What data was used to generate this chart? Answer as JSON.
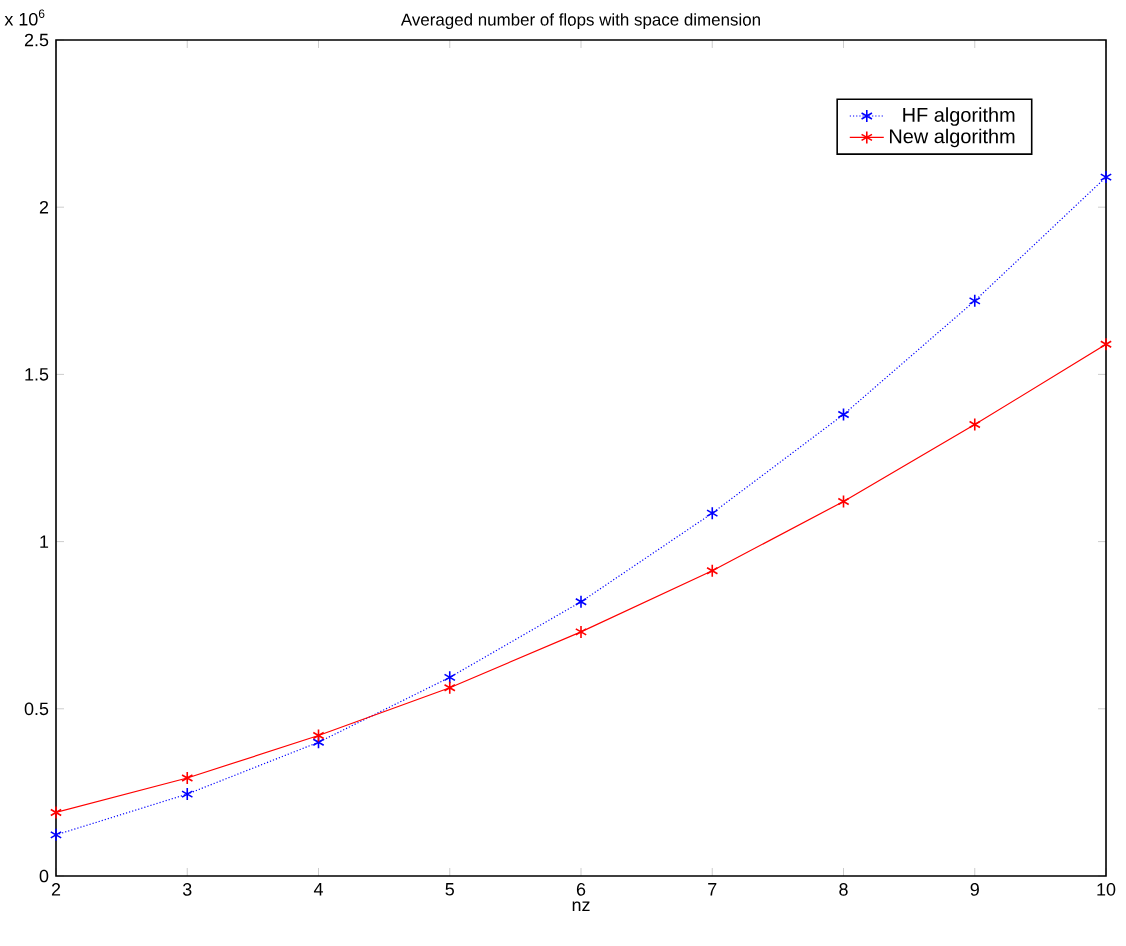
{
  "chart_data": {
    "type": "line",
    "title": "Averaged number of flops with space dimension",
    "xlabel": "nz",
    "annotations": [
      "x 10$^{6}$"
    ],
    "x": [
      2,
      3,
      4,
      5,
      6,
      7,
      8,
      9,
      10
    ],
    "series": [
      {
        "name": "HF algorithm",
        "color": "#0000ff",
        "line_style": "dotted",
        "values": [
          0.123,
          0.245,
          0.4,
          0.594,
          0.82,
          1.085,
          1.38,
          1.72,
          2.09
        ]
      },
      {
        "name": "New algorithm",
        "color": "#ff0000",
        "line_style": "solid",
        "values": [
          0.19,
          0.293,
          0.42,
          0.563,
          0.73,
          0.913,
          1.12,
          1.35,
          1.59
        ]
      }
    ],
    "xlim": [
      2,
      10
    ],
    "ylim": [
      0,
      2.5
    ],
    "xticks": [
      2,
      3,
      4,
      5,
      6,
      7,
      8,
      9,
      10
    ],
    "yticks": [
      0,
      0.5,
      1,
      1.5,
      2,
      2.5
    ],
    "marker": "cross",
    "legend": "top right",
    "grid": false
  }
}
